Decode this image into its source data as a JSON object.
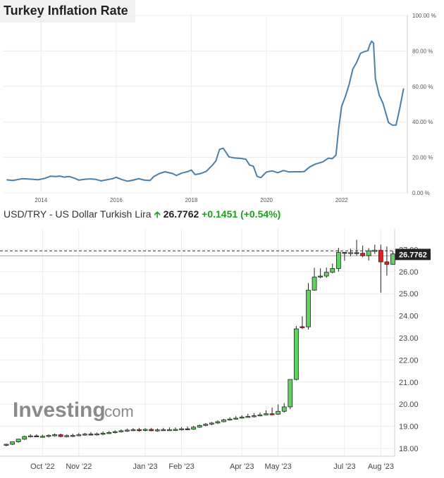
{
  "chart_data": [
    {
      "type": "line",
      "title": "Turkey Inflation Rate",
      "y_unit": "%",
      "xlim": [
        2013.0,
        2023.75
      ],
      "ylim": [
        0,
        100
      ],
      "x_tick_labels": [
        "2014",
        "2016",
        "2018",
        "2020",
        "2022"
      ],
      "x_ticks": [
        2014,
        2016,
        2018,
        2020,
        2022
      ],
      "y_tick_labels": [
        "0.00 %",
        "20.00 %",
        "40.00 %",
        "60.00 %",
        "80.00 %",
        "100.00 %"
      ],
      "y_ticks": [
        0,
        20,
        40,
        60,
        80,
        100
      ],
      "grid": true,
      "color": "#4a7fa8",
      "x": [
        2013.08,
        2013.25,
        2013.5,
        2013.75,
        2013.92,
        2014.1,
        2014.25,
        2014.4,
        2014.5,
        2014.6,
        2014.75,
        2014.9,
        2015.0,
        2015.15,
        2015.3,
        2015.45,
        2015.6,
        2015.75,
        2015.9,
        2016.0,
        2016.15,
        2016.3,
        2016.45,
        2016.6,
        2016.75,
        2016.9,
        2017.0,
        2017.15,
        2017.3,
        2017.5,
        2017.6,
        2017.75,
        2017.9,
        2018.0,
        2018.1,
        2018.25,
        2018.4,
        2018.55,
        2018.65,
        2018.75,
        2018.85,
        2019.0,
        2019.15,
        2019.3,
        2019.45,
        2019.55,
        2019.65,
        2019.75,
        2019.85,
        2020.0,
        2020.15,
        2020.3,
        2020.45,
        2020.6,
        2020.75,
        2020.9,
        2021.0,
        2021.15,
        2021.3,
        2021.5,
        2021.65,
        2021.75,
        2021.85,
        2021.92,
        2022.0,
        2022.1,
        2022.2,
        2022.3,
        2022.4,
        2022.5,
        2022.6,
        2022.7,
        2022.75,
        2022.8,
        2022.85,
        2022.9,
        2023.0,
        2023.1,
        2023.25,
        2023.35,
        2023.45,
        2023.55,
        2023.65
      ],
      "y": [
        7.4,
        7.0,
        8.0,
        7.7,
        7.4,
        8.2,
        9.4,
        9.2,
        9.5,
        8.9,
        9.2,
        8.2,
        7.2,
        7.6,
        7.9,
        7.6,
        6.8,
        7.4,
        8.0,
        8.8,
        7.5,
        6.6,
        7.2,
        8.0,
        7.2,
        7.0,
        9.2,
        10.9,
        11.9,
        10.9,
        9.8,
        11.2,
        12.0,
        12.9,
        10.3,
        10.9,
        12.2,
        15.4,
        17.9,
        24.5,
        25.2,
        20.3,
        19.7,
        19.5,
        19.0,
        15.7,
        15.0,
        9.3,
        8.6,
        11.8,
        12.4,
        11.4,
        12.6,
        11.8,
        11.9,
        11.9,
        12.0,
        14.6,
        16.2,
        17.5,
        19.6,
        19.3,
        21.3,
        36.1,
        48.7,
        54.4,
        61.1,
        69.9,
        73.5,
        78.6,
        79.6,
        80.2,
        83.5,
        85.5,
        84.4,
        64.3,
        55.2,
        50.5,
        39.6,
        38.2,
        38.2,
        47.8,
        58.9
      ]
    },
    {
      "type": "candlestick",
      "title": "USD/TRY - US Dollar Turkish Lira",
      "last_price": 26.7762,
      "last_price_label": "26.7762",
      "change_label": "+0.1451",
      "change_pct_label": "(+0.54%)",
      "x_tick_labels": [
        "Oct '22",
        "Nov '22",
        "Jan '23",
        "Feb '23",
        "Apr '23",
        "May '23",
        "Jul '23",
        "Aug '23"
      ],
      "x_ticks": [
        6,
        12,
        23,
        29,
        39,
        45,
        56,
        62
      ],
      "y_tick_labels": [
        "18.00",
        "19.00",
        "20.00",
        "21.00",
        "22.00",
        "23.00",
        "24.00",
        "25.00",
        "26.00",
        "27.00"
      ],
      "y_ticks": [
        18,
        19,
        20,
        21,
        22,
        23,
        24,
        25,
        26,
        27
      ],
      "ylim": [
        17.6,
        27.6
      ],
      "grid": true,
      "up_color": "#5fd35f",
      "down_color": "#dd2222",
      "week_index": [
        0,
        1,
        2,
        3,
        4,
        5,
        6,
        7,
        8,
        9,
        10,
        11,
        12,
        13,
        14,
        15,
        16,
        17,
        18,
        19,
        20,
        21,
        22,
        23,
        24,
        25,
        26,
        27,
        28,
        29,
        30,
        31,
        32,
        33,
        34,
        35,
        36,
        37,
        38,
        39,
        40,
        41,
        42,
        43,
        44,
        45,
        46,
        47,
        48,
        49,
        50,
        51,
        52,
        53,
        54,
        55,
        56,
        57,
        58,
        59,
        60,
        61,
        62,
        63,
        64,
        65,
        66
      ],
      "open": [
        18.14,
        18.19,
        18.3,
        18.42,
        18.54,
        18.57,
        18.55,
        18.55,
        18.59,
        18.62,
        18.54,
        18.58,
        18.59,
        18.62,
        18.65,
        18.63,
        18.66,
        18.69,
        18.72,
        18.76,
        18.8,
        18.83,
        18.85,
        18.82,
        18.86,
        18.8,
        18.84,
        18.85,
        18.85,
        18.86,
        18.89,
        18.87,
        18.96,
        19.04,
        19.1,
        19.15,
        19.21,
        19.29,
        19.33,
        19.37,
        19.42,
        19.45,
        19.48,
        19.52,
        19.57,
        19.55,
        19.68,
        19.88,
        21.12,
        23.51,
        23.5,
        25.16,
        25.75,
        25.8,
        25.97,
        26.14,
        26.87,
        26.86,
        26.86,
        26.83,
        26.72,
        26.94,
        26.96,
        26.44,
        26.33,
        26.8,
        26.77
      ],
      "high": [
        18.22,
        18.29,
        18.44,
        18.58,
        18.64,
        18.64,
        18.62,
        18.64,
        18.68,
        18.67,
        18.63,
        18.67,
        18.7,
        18.7,
        18.74,
        18.72,
        18.77,
        18.79,
        18.82,
        18.86,
        18.9,
        18.92,
        18.93,
        18.92,
        18.93,
        18.91,
        18.93,
        18.95,
        18.95,
        18.97,
        18.99,
        19.02,
        19.08,
        19.15,
        19.2,
        19.27,
        19.34,
        19.41,
        19.46,
        19.5,
        19.57,
        19.6,
        19.62,
        19.72,
        19.85,
        19.99,
        20.05,
        21.12,
        23.54,
        23.98,
        25.48,
        26.17,
        26.15,
        26.18,
        26.36,
        27.08,
        26.88,
        27.03,
        27.44,
        27.18,
        27.06,
        27.22,
        27.22,
        27.14,
        26.93,
        26.83,
        26.8
      ],
      "low": [
        18.09,
        18.15,
        18.26,
        18.38,
        18.5,
        18.51,
        18.5,
        18.5,
        18.53,
        18.5,
        18.5,
        18.51,
        18.55,
        18.57,
        18.59,
        18.58,
        18.6,
        18.65,
        18.68,
        18.72,
        18.75,
        18.78,
        18.76,
        18.77,
        18.78,
        18.75,
        18.79,
        18.81,
        18.81,
        18.81,
        18.84,
        18.84,
        18.93,
        19.0,
        19.05,
        19.11,
        19.18,
        19.26,
        19.31,
        19.35,
        19.4,
        19.4,
        19.45,
        19.49,
        19.5,
        19.52,
        19.62,
        19.77,
        21.08,
        23.4,
        23.38,
        25.13,
        25.7,
        25.72,
        25.92,
        26.0,
        26.49,
        26.7,
        26.73,
        26.65,
        26.5,
        26.8,
        25.05,
        25.82,
        26.32,
        26.63,
        26.63
      ],
      "close": [
        18.19,
        18.3,
        18.42,
        18.54,
        18.57,
        18.55,
        18.55,
        18.59,
        18.62,
        18.54,
        18.58,
        18.59,
        18.62,
        18.65,
        18.63,
        18.66,
        18.69,
        18.72,
        18.76,
        18.8,
        18.83,
        18.85,
        18.82,
        18.86,
        18.8,
        18.84,
        18.85,
        18.85,
        18.86,
        18.89,
        18.87,
        18.96,
        19.04,
        19.1,
        19.15,
        19.21,
        19.29,
        19.33,
        19.37,
        19.42,
        19.45,
        19.48,
        19.52,
        19.57,
        19.55,
        19.68,
        19.88,
        21.12,
        23.41,
        23.5,
        25.16,
        25.75,
        25.8,
        25.97,
        26.14,
        26.87,
        26.86,
        26.86,
        26.83,
        26.72,
        26.94,
        26.96,
        26.44,
        26.33,
        26.8,
        26.77,
        26.78
      ]
    }
  ],
  "watermark": {
    "brand": "Investing",
    "suffix": ".com"
  }
}
